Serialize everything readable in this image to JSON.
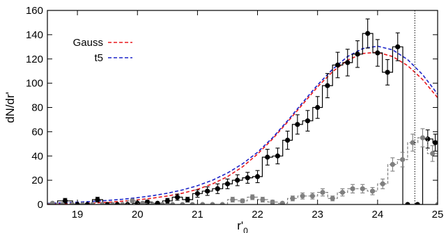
{
  "chart_data": {
    "type": "line",
    "title": "",
    "xlabel": "r'",
    "xlabel_subscript": "0",
    "ylabel": "dN/dr'",
    "xlim": [
      18.5,
      25
    ],
    "ylim": [
      0,
      160
    ],
    "x_ticks": [
      19,
      20,
      21,
      22,
      23,
      24,
      25
    ],
    "y_ticks": [
      0,
      20,
      40,
      60,
      80,
      100,
      120,
      140,
      160
    ],
    "grid": false,
    "legend_position": "top-left",
    "cutoff_line_x": 24.62,
    "series": [
      {
        "name": "Gauss",
        "kind": "model-curve",
        "style": "dashed",
        "color": "#e8161b",
        "x": [
          18.5,
          18.75,
          19.0,
          19.25,
          19.5,
          19.75,
          20.0,
          20.25,
          20.5,
          20.75,
          21.0,
          21.25,
          21.5,
          21.75,
          22.0,
          22.25,
          22.5,
          22.75,
          23.0,
          23.25,
          23.5,
          23.75,
          24.0,
          24.25,
          24.5,
          24.75,
          25.0
        ],
        "y": [
          0.3,
          0.5,
          0.8,
          1.2,
          1.8,
          2.7,
          3.8,
          5.2,
          7.0,
          9.3,
          12.5,
          17.0,
          23.0,
          31.0,
          41.5,
          54.0,
          68.0,
          82.5,
          97.0,
          109.5,
          119.0,
          124.5,
          125.5,
          122.0,
          114.5,
          103.0,
          88.0
        ]
      },
      {
        "name": "t5",
        "kind": "model-curve",
        "style": "dashed",
        "color": "#1b23c8",
        "x": [
          18.5,
          18.75,
          19.0,
          19.25,
          19.5,
          19.75,
          20.0,
          20.25,
          20.5,
          20.75,
          21.0,
          21.25,
          21.5,
          21.75,
          22.0,
          22.25,
          22.5,
          22.75,
          23.0,
          23.25,
          23.5,
          23.75,
          24.0,
          24.25,
          24.5,
          24.75,
          25.0
        ],
        "y": [
          1.0,
          1.4,
          1.9,
          2.5,
          3.3,
          4.3,
          5.6,
          7.2,
          9.3,
          12.0,
          15.5,
          20.0,
          26.0,
          33.5,
          43.0,
          55.0,
          69.0,
          84.0,
          98.5,
          111.5,
          122.0,
          128.5,
          130.5,
          127.5,
          119.5,
          107.0,
          91.0
        ]
      },
      {
        "name": "",
        "kind": "histogram-with-errors",
        "color": "#000000",
        "x": [
          18.5,
          18.67,
          18.92,
          19.08,
          19.25,
          19.42,
          19.58,
          19.75,
          19.92,
          20.08,
          20.25,
          20.42,
          20.58,
          20.75,
          20.92,
          21.08,
          21.25,
          21.42,
          21.58,
          21.75,
          21.92,
          22.08,
          22.25,
          22.42,
          22.58,
          22.75,
          22.92,
          23.08,
          23.25,
          23.42,
          23.58,
          23.75,
          23.92,
          24.08,
          24.25,
          24.42,
          24.58,
          24.75,
          24.92
        ],
        "y": [
          0,
          3,
          0,
          0,
          4,
          0,
          0,
          0,
          1,
          2,
          1,
          3,
          6,
          4,
          9,
          11,
          13,
          17,
          20,
          22,
          23,
          39,
          40,
          53,
          66,
          69,
          80,
          98,
          115,
          117,
          124,
          141,
          125,
          109,
          130,
          0,
          0,
          54,
          51
        ],
        "err": [
          0,
          2,
          0,
          0,
          2,
          0,
          0,
          0,
          1,
          1.5,
          1,
          2,
          2.5,
          2,
          3,
          3.5,
          4,
          4,
          4.5,
          4.5,
          5,
          6.5,
          6.5,
          7.5,
          8,
          8.5,
          9,
          10,
          10.5,
          11,
          11,
          12,
          11,
          10.5,
          11.5,
          0,
          0,
          7.5,
          7
        ]
      },
      {
        "name": "",
        "kind": "histogram-with-errors",
        "color": "#7f7f7f",
        "x": [
          18.5,
          18.67,
          18.83,
          19.0,
          19.17,
          19.33,
          19.5,
          19.67,
          19.83,
          20.0,
          20.17,
          20.33,
          20.5,
          20.67,
          20.83,
          21.0,
          21.17,
          21.33,
          21.5,
          21.67,
          21.83,
          22.0,
          22.17,
          22.33,
          22.5,
          22.67,
          22.83,
          23.0,
          23.17,
          23.33,
          23.5,
          23.67,
          23.83,
          24.0,
          24.17,
          24.33,
          24.5,
          24.67,
          24.83,
          25.0
        ],
        "y": [
          1,
          0,
          0,
          0,
          0,
          0,
          0,
          0,
          3,
          1,
          0,
          0,
          0,
          0,
          0,
          0,
          0,
          0,
          4,
          3,
          6,
          4,
          2,
          1,
          5,
          7,
          7,
          10,
          5,
          10,
          13,
          13,
          11,
          17,
          33,
          37,
          51,
          55,
          42,
          0
        ],
        "err": [
          1,
          0,
          0,
          0,
          0,
          0,
          0,
          0,
          1.5,
          1,
          0,
          0,
          0,
          0,
          0,
          0,
          0,
          0,
          2,
          1.5,
          2,
          2,
          1.5,
          1,
          2,
          2.5,
          2.5,
          3,
          2,
          3,
          3.5,
          3.5,
          3,
          4,
          5.5,
          6,
          7,
          7.5,
          6.5,
          0
        ]
      }
    ],
    "legend": [
      {
        "label": "Gauss",
        "color": "#e8161b"
      },
      {
        "label": "t5",
        "color": "#1b23c8"
      }
    ]
  }
}
